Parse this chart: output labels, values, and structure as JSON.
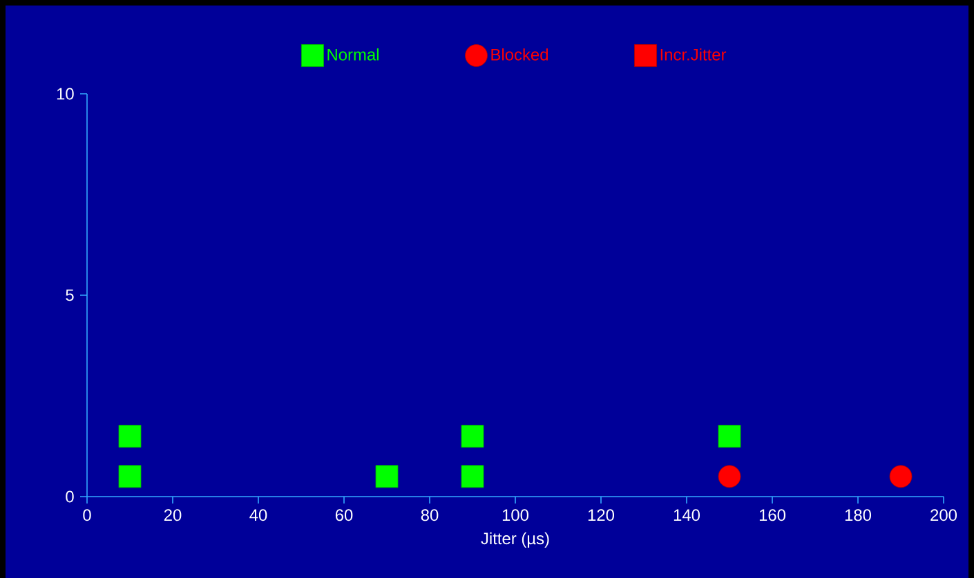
{
  "chart_data": {
    "type": "scatter",
    "xlabel": "Jitter (µs)",
    "xlim": [
      0,
      200
    ],
    "xticks": [
      0,
      20,
      40,
      60,
      80,
      100,
      120,
      140,
      160,
      180,
      200
    ],
    "ylim": [
      0,
      10
    ],
    "yticks": [
      0,
      5,
      10
    ],
    "legend": "top",
    "grid": false,
    "series": [
      {
        "name": "Normal",
        "color": "#00ff00",
        "marker": "square",
        "x": [
          10,
          10,
          70,
          90,
          90,
          150
        ],
        "values": [
          1.5,
          0.5,
          0.5,
          1.5,
          0.5,
          1.5
        ]
      },
      {
        "name": "Blocked",
        "color": "#ff0000",
        "marker": "circle",
        "x": [
          150,
          190
        ],
        "values": [
          0.5,
          0.5
        ]
      },
      {
        "name": "Incr.Jitter",
        "color": "#ff0000",
        "marker": "square"
      }
    ]
  }
}
